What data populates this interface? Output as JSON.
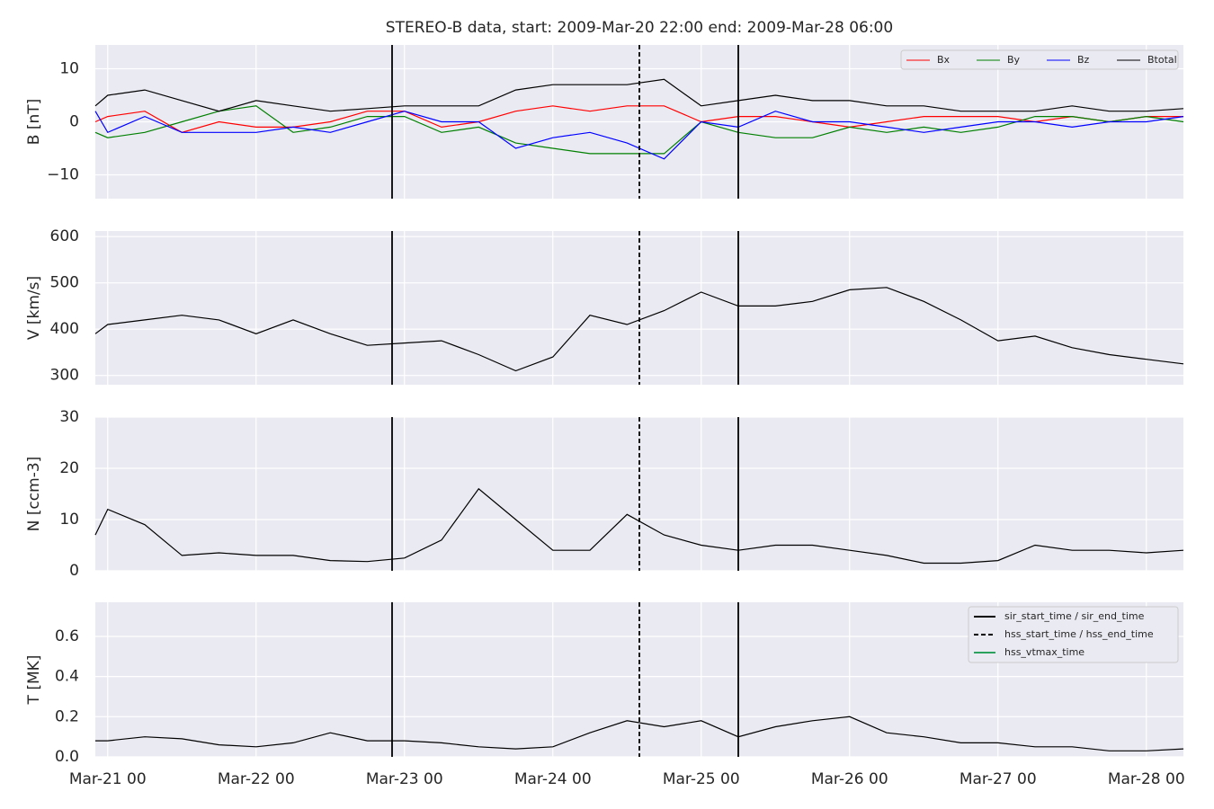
{
  "title": "STEREO-B data, start: 2009-Mar-20 22:00  end: 2009-Mar-28 06:00",
  "events": {
    "legend": "upper right",
    "series": [
      {
        "name": "sir_start_time / sir_end_time",
        "color": "#000000",
        "dash": false,
        "x": [
          "Mar-22 22",
          "Mar-25 06"
        ]
      },
      {
        "name": "hss_start_time / hss_end_time",
        "color": "#000000",
        "dash": true,
        "x": [
          "Mar-24 14"
        ]
      },
      {
        "name": "hss_vtmax_time",
        "color": "#2ca25f",
        "dash": false,
        "x": []
      }
    ]
  },
  "chart_data": [
    {
      "type": "line",
      "ylabel": "B [nT]",
      "grid": true,
      "legend": "upper right",
      "x": [
        "Mar-20 22",
        "Mar-21 00",
        "Mar-21 06",
        "Mar-21 12",
        "Mar-21 18",
        "Mar-22 00",
        "Mar-22 06",
        "Mar-22 12",
        "Mar-22 18",
        "Mar-23 00",
        "Mar-23 06",
        "Mar-23 12",
        "Mar-23 18",
        "Mar-24 00",
        "Mar-24 06",
        "Mar-24 12",
        "Mar-24 18",
        "Mar-25 00",
        "Mar-25 06",
        "Mar-25 12",
        "Mar-25 18",
        "Mar-26 00",
        "Mar-26 06",
        "Mar-26 12",
        "Mar-26 18",
        "Mar-27 00",
        "Mar-27 06",
        "Mar-27 12",
        "Mar-27 18",
        "Mar-28 00",
        "Mar-28 06"
      ],
      "xlim": [
        "Mar-20 22",
        "Mar-28 06"
      ],
      "xticks": [
        "Mar-21 00",
        "Mar-22 00",
        "Mar-23 00",
        "Mar-24 00",
        "Mar-25 00",
        "Mar-26 00",
        "Mar-27 00",
        "Mar-28 00"
      ],
      "ylim": [
        -14.5,
        14.5
      ],
      "yticks": [
        {
          "value": -10,
          "label": "−10"
        },
        0,
        10
      ],
      "series": [
        {
          "name": "Bx",
          "color": "#ff0000",
          "values": [
            0,
            1,
            2,
            -2,
            0,
            -1,
            -1,
            0,
            2,
            2,
            -1,
            0,
            2,
            3,
            2,
            3,
            3,
            0,
            1,
            1,
            0,
            -1,
            0,
            1,
            1,
            1,
            0,
            1,
            0,
            1,
            1
          ]
        },
        {
          "name": "By",
          "color": "#008000",
          "values": [
            -2,
            -3,
            -2,
            0,
            2,
            3,
            -2,
            -1,
            1,
            1,
            -2,
            -1,
            -4,
            -5,
            -6,
            -6,
            -6,
            0,
            -2,
            -3,
            -3,
            -1,
            -2,
            -1,
            -2,
            -1,
            1,
            1,
            0,
            1,
            0
          ]
        },
        {
          "name": "Bz",
          "color": "#0000ff",
          "values": [
            2,
            -2,
            1,
            -2,
            -2,
            -2,
            -1,
            -2,
            0,
            2,
            0,
            0,
            -5,
            -3,
            -2,
            -4,
            -7,
            0,
            -1,
            2,
            0,
            0,
            -1,
            -2,
            -1,
            0,
            0,
            -1,
            0,
            0,
            1
          ]
        },
        {
          "name": "Btotal",
          "color": "#000000",
          "values": [
            3,
            5,
            6,
            4,
            2,
            4,
            3,
            2,
            2.5,
            3,
            3,
            3,
            6,
            7,
            7,
            7,
            8,
            3,
            4,
            5,
            4,
            4,
            3,
            3,
            2,
            2,
            2,
            3,
            2,
            2,
            2.5
          ]
        }
      ]
    },
    {
      "type": "line",
      "ylabel": "V [km/s]",
      "grid": true,
      "x": [
        "Mar-20 22",
        "Mar-21 00",
        "Mar-21 06",
        "Mar-21 12",
        "Mar-21 18",
        "Mar-22 00",
        "Mar-22 06",
        "Mar-22 12",
        "Mar-22 18",
        "Mar-23 00",
        "Mar-23 06",
        "Mar-23 12",
        "Mar-23 18",
        "Mar-24 00",
        "Mar-24 06",
        "Mar-24 12",
        "Mar-24 18",
        "Mar-25 00",
        "Mar-25 06",
        "Mar-25 12",
        "Mar-25 18",
        "Mar-26 00",
        "Mar-26 06",
        "Mar-26 12",
        "Mar-26 18",
        "Mar-27 00",
        "Mar-27 06",
        "Mar-27 12",
        "Mar-27 18",
        "Mar-28 00",
        "Mar-28 06"
      ],
      "xlim": [
        "Mar-20 22",
        "Mar-28 06"
      ],
      "xticks": [
        "Mar-21 00",
        "Mar-22 00",
        "Mar-23 00",
        "Mar-24 00",
        "Mar-25 00",
        "Mar-26 00",
        "Mar-27 00",
        "Mar-28 00"
      ],
      "ylim": [
        280,
        612
      ],
      "yticks": [
        300,
        400,
        500,
        600
      ],
      "series": [
        {
          "color": "#000000",
          "values": [
            390,
            410,
            420,
            430,
            420,
            390,
            420,
            390,
            365,
            370,
            375,
            345,
            310,
            340,
            430,
            410,
            440,
            480,
            450,
            450,
            460,
            485,
            490,
            460,
            420,
            375,
            385,
            360,
            345,
            335,
            325
          ]
        }
      ]
    },
    {
      "type": "line",
      "ylabel": "N [ccm-3]",
      "grid": true,
      "x": [
        "Mar-20 22",
        "Mar-21 00",
        "Mar-21 06",
        "Mar-21 12",
        "Mar-21 18",
        "Mar-22 00",
        "Mar-22 06",
        "Mar-22 12",
        "Mar-22 18",
        "Mar-23 00",
        "Mar-23 06",
        "Mar-23 12",
        "Mar-23 18",
        "Mar-24 00",
        "Mar-24 06",
        "Mar-24 12",
        "Mar-24 18",
        "Mar-25 00",
        "Mar-25 06",
        "Mar-25 12",
        "Mar-25 18",
        "Mar-26 00",
        "Mar-26 06",
        "Mar-26 12",
        "Mar-26 18",
        "Mar-27 00",
        "Mar-27 06",
        "Mar-27 12",
        "Mar-27 18",
        "Mar-28 00",
        "Mar-28 06"
      ],
      "xlim": [
        "Mar-20 22",
        "Mar-28 06"
      ],
      "xticks": [
        "Mar-21 00",
        "Mar-22 00",
        "Mar-23 00",
        "Mar-24 00",
        "Mar-25 00",
        "Mar-26 00",
        "Mar-27 00",
        "Mar-28 00"
      ],
      "ylim": [
        0,
        30
      ],
      "yticks": [
        0,
        10,
        20,
        30
      ],
      "series": [
        {
          "color": "#000000",
          "values": [
            7,
            12,
            9,
            3,
            3.5,
            3,
            3,
            2,
            1.8,
            2.5,
            6,
            16,
            10,
            4,
            4,
            11,
            7,
            5,
            4,
            5,
            5,
            4,
            3,
            1.5,
            1.5,
            2,
            5,
            4,
            4,
            3.5,
            4
          ]
        }
      ]
    },
    {
      "type": "line",
      "ylabel": "T [MK]",
      "grid": true,
      "x": [
        "Mar-20 22",
        "Mar-21 00",
        "Mar-21 06",
        "Mar-21 12",
        "Mar-21 18",
        "Mar-22 00",
        "Mar-22 06",
        "Mar-22 12",
        "Mar-22 18",
        "Mar-23 00",
        "Mar-23 06",
        "Mar-23 12",
        "Mar-23 18",
        "Mar-24 00",
        "Mar-24 06",
        "Mar-24 12",
        "Mar-24 18",
        "Mar-25 00",
        "Mar-25 06",
        "Mar-25 12",
        "Mar-25 18",
        "Mar-26 00",
        "Mar-26 06",
        "Mar-26 12",
        "Mar-26 18",
        "Mar-27 00",
        "Mar-27 06",
        "Mar-27 12",
        "Mar-27 18",
        "Mar-28 00",
        "Mar-28 06"
      ],
      "xlim": [
        "Mar-20 22",
        "Mar-28 06"
      ],
      "xticks": [
        "Mar-21 00",
        "Mar-22 00",
        "Mar-23 00",
        "Mar-24 00",
        "Mar-25 00",
        "Mar-26 00",
        "Mar-27 00",
        "Mar-28 00"
      ],
      "ylim": [
        0,
        0.77
      ],
      "yticks": [
        {
          "value": 0,
          "label": "0.0"
        },
        0.2,
        0.4,
        0.6
      ],
      "series": [
        {
          "color": "#000000",
          "values": [
            0.08,
            0.08,
            0.1,
            0.09,
            0.06,
            0.05,
            0.07,
            0.12,
            0.08,
            0.08,
            0.07,
            0.05,
            0.04,
            0.05,
            0.12,
            0.18,
            0.15,
            0.18,
            0.1,
            0.15,
            0.18,
            0.2,
            0.12,
            0.1,
            0.07,
            0.07,
            0.05,
            0.05,
            0.03,
            0.03,
            0.04
          ]
        }
      ]
    }
  ]
}
